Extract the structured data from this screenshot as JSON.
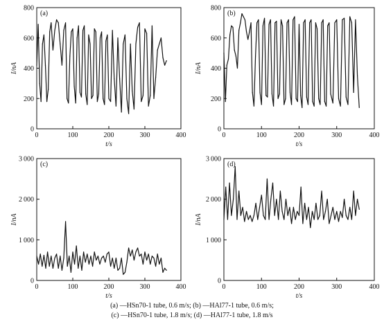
{
  "caption": {
    "line1": "(a) —HSn70-1 tube, 0.6 m/s; (b) —HAl77-1 tube, 0.6 m/s;",
    "line2": "(c) —HSn70-1 tube, 1.8 m/s; (d) —HAl77-1 tube, 1.8 m/s"
  },
  "chart_data": [
    {
      "type": "line",
      "panel_label": "(a)",
      "xlabel": "t/s",
      "ylabel": "I/nA",
      "xlim": [
        0,
        400
      ],
      "ylim": [
        0,
        800
      ],
      "xticks": [
        0,
        100,
        200,
        300,
        400
      ],
      "yticks": [
        0,
        200,
        400,
        600,
        800
      ],
      "series": [
        {
          "x": [
            0,
            4,
            8,
            12,
            16,
            20,
            24,
            28,
            32,
            36,
            40,
            45,
            50,
            55,
            60,
            65,
            70,
            75,
            80,
            84,
            88,
            92,
            96,
            100,
            104,
            108,
            112,
            116,
            120,
            124,
            128,
            132,
            136,
            140,
            144,
            148,
            152,
            156,
            160,
            164,
            168,
            172,
            176,
            180,
            184,
            188,
            192,
            196,
            200,
            205,
            210,
            215,
            220,
            225,
            230,
            235,
            240,
            245,
            250,
            255,
            260,
            265,
            270,
            275,
            280,
            285,
            290,
            295,
            300,
            305,
            310,
            315,
            320,
            325,
            330,
            335,
            340,
            345,
            350,
            355,
            360
          ],
          "y": [
            420,
            690,
            300,
            180,
            560,
            620,
            420,
            180,
            260,
            640,
            700,
            520,
            650,
            720,
            700,
            560,
            420,
            650,
            700,
            200,
            170,
            480,
            640,
            660,
            280,
            170,
            600,
            680,
            240,
            210,
            650,
            680,
            230,
            160,
            620,
            560,
            200,
            220,
            660,
            640,
            180,
            230,
            600,
            640,
            200,
            160,
            580,
            620,
            200,
            180,
            650,
            330,
            150,
            600,
            330,
            110,
            560,
            620,
            200,
            100,
            560,
            250,
            130,
            560,
            670,
            700,
            180,
            220,
            660,
            630,
            150,
            220,
            680,
            200,
            340,
            520,
            560,
            600,
            470,
            420,
            450
          ]
        }
      ]
    },
    {
      "type": "line",
      "panel_label": "(b)",
      "xlabel": "t/s",
      "ylabel": "I/nA",
      "xlim": [
        0,
        400
      ],
      "ylim": [
        0,
        800
      ],
      "xticks": [
        0,
        100,
        200,
        300,
        400
      ],
      "yticks": [
        0,
        200,
        400,
        600,
        800
      ],
      "series": [
        {
          "x": [
            0,
            4,
            8,
            12,
            16,
            20,
            24,
            28,
            32,
            36,
            40,
            44,
            48,
            52,
            56,
            60,
            64,
            68,
            72,
            76,
            80,
            84,
            88,
            92,
            96,
            100,
            104,
            108,
            112,
            116,
            120,
            124,
            128,
            132,
            136,
            140,
            144,
            148,
            152,
            156,
            160,
            164,
            168,
            172,
            176,
            180,
            184,
            188,
            192,
            196,
            200,
            204,
            208,
            212,
            216,
            220,
            224,
            228,
            232,
            236,
            240,
            244,
            248,
            252,
            256,
            260,
            264,
            268,
            272,
            276,
            280,
            284,
            290,
            295,
            300,
            305,
            310,
            315,
            320,
            325,
            330,
            335,
            340,
            345,
            350,
            355,
            360
          ],
          "y": [
            500,
            180,
            420,
            460,
            620,
            680,
            670,
            520,
            480,
            400,
            650,
            700,
            760,
            740,
            720,
            640,
            590,
            640,
            700,
            240,
            150,
            480,
            700,
            720,
            240,
            160,
            680,
            730,
            220,
            210,
            690,
            720,
            230,
            150,
            700,
            710,
            200,
            230,
            720,
            680,
            160,
            200,
            700,
            720,
            240,
            160,
            720,
            740,
            200,
            180,
            690,
            220,
            140,
            700,
            720,
            210,
            160,
            700,
            720,
            180,
            150,
            700,
            660,
            200,
            160,
            700,
            720,
            180,
            150,
            680,
            700,
            230,
            170,
            700,
            720,
            200,
            150,
            720,
            730,
            210,
            160,
            740,
            700,
            240,
            720,
            350,
            140
          ]
        }
      ]
    },
    {
      "type": "line",
      "panel_label": "(c)",
      "xlabel": "t/s",
      "ylabel": "I/nA",
      "xlim": [
        0,
        400
      ],
      "ylim": [
        0,
        3000
      ],
      "xticks": [
        0,
        100,
        200,
        300,
        400
      ],
      "yticks": [
        0,
        1000,
        2000,
        3000
      ],
      "series": [
        {
          "x": [
            0,
            5,
            10,
            15,
            20,
            25,
            30,
            35,
            40,
            45,
            50,
            55,
            60,
            65,
            70,
            75,
            80,
            85,
            90,
            95,
            100,
            105,
            110,
            115,
            120,
            125,
            130,
            135,
            140,
            145,
            150,
            155,
            160,
            165,
            170,
            175,
            180,
            185,
            190,
            195,
            200,
            205,
            210,
            215,
            220,
            225,
            230,
            235,
            240,
            245,
            250,
            255,
            260,
            265,
            270,
            275,
            280,
            285,
            290,
            295,
            300,
            305,
            310,
            315,
            320,
            325,
            330,
            335,
            340,
            345,
            350,
            355,
            360
          ],
          "y": [
            600,
            400,
            650,
            350,
            620,
            300,
            700,
            350,
            600,
            300,
            550,
            650,
            300,
            600,
            250,
            550,
            1450,
            350,
            600,
            200,
            700,
            400,
            850,
            300,
            600,
            250,
            700,
            450,
            650,
            400,
            600,
            350,
            700,
            500,
            600,
            400,
            550,
            600,
            450,
            650,
            700,
            350,
            550,
            300,
            550,
            250,
            300,
            550,
            150,
            200,
            450,
            800,
            600,
            750,
            500,
            700,
            800,
            600,
            650,
            400,
            700,
            500,
            650,
            400,
            600,
            550,
            350,
            650,
            400,
            550,
            200,
            300,
            250
          ]
        }
      ]
    },
    {
      "type": "line",
      "panel_label": "(d)",
      "xlabel": "t/s",
      "ylabel": "I/nA",
      "xlim": [
        0,
        400
      ],
      "ylim": [
        0,
        3000
      ],
      "xticks": [
        0,
        100,
        200,
        300,
        400
      ],
      "yticks": [
        0,
        1000,
        2000,
        3000
      ],
      "series": [
        {
          "x": [
            0,
            5,
            10,
            15,
            20,
            25,
            30,
            35,
            40,
            45,
            50,
            55,
            60,
            65,
            70,
            75,
            80,
            85,
            90,
            95,
            100,
            105,
            110,
            115,
            120,
            125,
            130,
            135,
            140,
            145,
            150,
            155,
            160,
            165,
            170,
            175,
            180,
            185,
            190,
            195,
            200,
            205,
            210,
            215,
            220,
            225,
            230,
            235,
            240,
            245,
            250,
            255,
            260,
            265,
            270,
            275,
            280,
            285,
            290,
            295,
            300,
            305,
            310,
            315,
            320,
            325,
            330,
            335,
            340,
            345,
            350,
            355,
            360
          ],
          "y": [
            1500,
            2300,
            1500,
            2400,
            1600,
            2000,
            2800,
            1500,
            2200,
            1600,
            1800,
            1450,
            1700,
            1500,
            1600,
            1450,
            1600,
            1900,
            1500,
            1800,
            2100,
            1600,
            1500,
            2500,
            1500,
            2000,
            2400,
            1600,
            2000,
            1500,
            2200,
            1700,
            1500,
            2000,
            1600,
            1800,
            1400,
            1800,
            1500,
            1700,
            1600,
            2300,
            1400,
            1900,
            1500,
            1800,
            1300,
            1700,
            1500,
            1900,
            1500,
            1600,
            2200,
            1500,
            1700,
            2000,
            1400,
            1600,
            1800,
            1500,
            1700,
            1450,
            1700,
            1550,
            2000,
            1600,
            1500,
            1800,
            1500,
            2200,
            1600,
            2000,
            1750
          ]
        }
      ]
    }
  ]
}
